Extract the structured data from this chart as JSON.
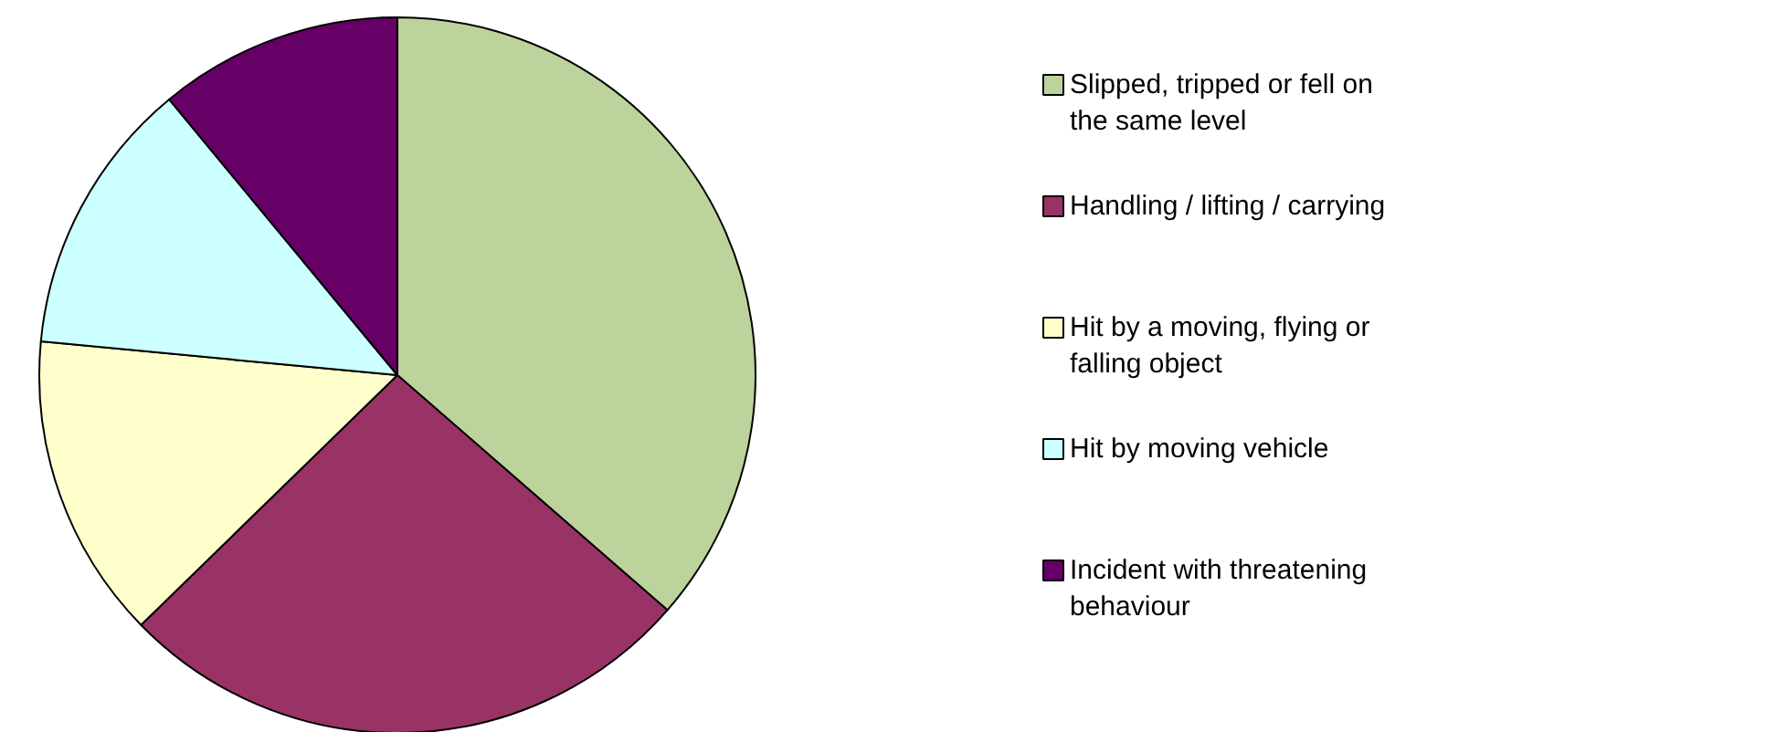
{
  "chart_data": {
    "type": "pie",
    "categories": [
      "Slipped, tripped or fell on the same level",
      "Handling / lifting / carrying",
      "Hit by a moving, flying or falling object",
      "Hit by moving vehicle",
      "Incident with threatening behaviour"
    ],
    "values": [
      36.4,
      26.3,
      13.8,
      12.5,
      11.0
    ],
    "colors": [
      "#bcd39b",
      "#993366",
      "#ffffcc",
      "#ccffff",
      "#660066"
    ],
    "legend": "right"
  }
}
